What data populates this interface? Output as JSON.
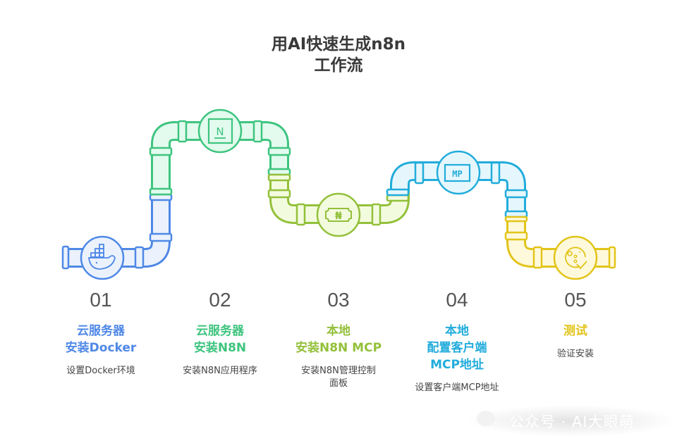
{
  "title": {
    "line1": "用AI快速生成n8n",
    "line2": "工作流"
  },
  "colors": {
    "blue": "#4f88e6",
    "green": "#3ec47f",
    "lime": "#93c03a",
    "cyan": "#22acdb",
    "yellow": "#e2c419"
  },
  "steps": [
    {
      "number": "01",
      "title1": "云服务器",
      "title2": "安装Docker",
      "desc": "设置Docker环境",
      "color": "#4f88e6",
      "icon": "docker-whale-icon"
    },
    {
      "number": "02",
      "title1": "云服务器",
      "title2": "安装N8N",
      "desc": "安装N8N应用程序",
      "color": "#3ec47f",
      "icon": "n8n-logo-icon",
      "icon_text": "N"
    },
    {
      "number": "03",
      "title1": "本地",
      "title2": "安装N8N MCP",
      "desc": "安装N8N管理控制面板",
      "color": "#93c03a",
      "icon": "naira-ticket-icon",
      "icon_text": "₦"
    },
    {
      "number": "04",
      "title1": "本地",
      "title2": "配置客户端",
      "title3": "MCP地址",
      "desc": "设置客户端MCP地址",
      "color": "#22acdb",
      "icon": "mcp-badge-icon",
      "icon_text": "MP"
    },
    {
      "number": "05",
      "title1": "测试",
      "title2": "",
      "desc": "验证安装",
      "color": "#e2c419",
      "icon": "test-check-icon"
    }
  ],
  "watermark": "公众号 · AI大眼萌"
}
